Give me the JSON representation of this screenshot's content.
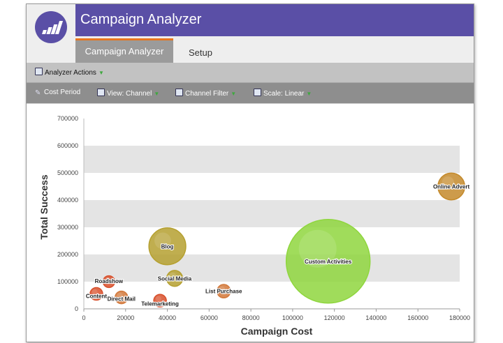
{
  "app": {
    "title": "Campaign Analyzer"
  },
  "tabs": [
    {
      "label": "Campaign Analyzer",
      "active": true
    },
    {
      "label": "Setup",
      "active": false
    }
  ],
  "toolbar1": {
    "analyzer_actions": "Analyzer Actions"
  },
  "toolbar2": {
    "cost_period": "Cost Period",
    "view": "View: Channel",
    "channel_filter": "Channel Filter",
    "scale": "Scale: Linear"
  },
  "colors": {
    "header": "#5a4fa6",
    "active_tab_accent": "#e8761e",
    "caret": "#3fa83f"
  },
  "chart_data": {
    "type": "scatter",
    "title": "",
    "xlabel": "Campaign Cost",
    "ylabel": "Total Success",
    "xlim": [
      0,
      180000
    ],
    "ylim": [
      0,
      700000
    ],
    "xticks": [
      0,
      20000,
      40000,
      60000,
      80000,
      100000,
      120000,
      140000,
      160000,
      180000
    ],
    "yticks": [
      0,
      100000,
      200000,
      300000,
      400000,
      500000,
      600000,
      700000
    ],
    "grid": "horizontal alternating bands",
    "legend": "none",
    "points": [
      {
        "label": "Online Advert",
        "x": 176000,
        "y": 450000,
        "size": 0.32,
        "color": "#c48a2c"
      },
      {
        "label": "Custom Activities",
        "x": 117000,
        "y": 175000,
        "size": 1.0,
        "color": "#8fd63e"
      },
      {
        "label": "Blog",
        "x": 40000,
        "y": 230000,
        "size": 0.44,
        "color": "#b5a030"
      },
      {
        "label": "Social Media",
        "x": 43500,
        "y": 112000,
        "size": 0.19,
        "color": "#b5a030"
      },
      {
        "label": "List Purchase",
        "x": 67000,
        "y": 65000,
        "size": 0.16,
        "color": "#d2783a"
      },
      {
        "label": "Roadshow",
        "x": 12000,
        "y": 100000,
        "size": 0.14,
        "color": "#d8502c"
      },
      {
        "label": "Content",
        "x": 6000,
        "y": 55000,
        "size": 0.15,
        "color": "#d8502c"
      },
      {
        "label": "Direct Mail",
        "x": 18000,
        "y": 42000,
        "size": 0.15,
        "color": "#d2783a"
      },
      {
        "label": "Telemarketing",
        "x": 36500,
        "y": 30000,
        "size": 0.15,
        "color": "#d8502c"
      }
    ]
  }
}
